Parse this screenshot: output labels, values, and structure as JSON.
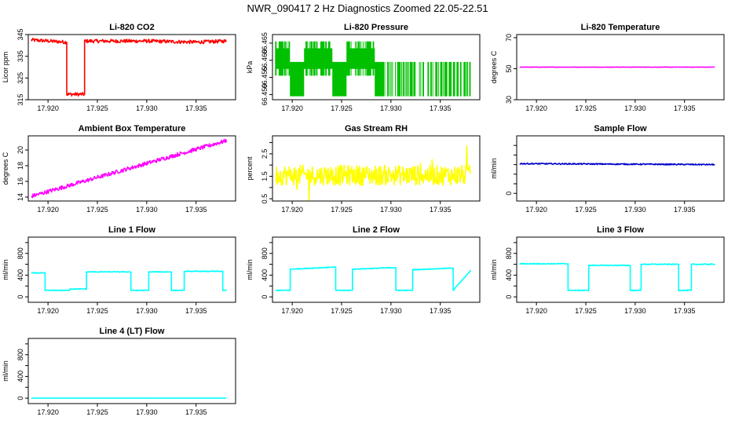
{
  "main_title": "NWR_090417  2 Hz Diagnostics Zoomed 22.05-22.51",
  "chart_data": [
    {
      "type": "line",
      "title": "Li-820 CO2",
      "ylabel": "Licor ppm",
      "xlim": [
        17.918,
        17.939
      ],
      "x_ticks": [
        17.92,
        17.925,
        17.93,
        17.935
      ],
      "x_tick_labels": [
        "17.920",
        "17.925",
        "17.930",
        "17.935"
      ],
      "ylim": [
        315,
        345
      ],
      "y_ticks": [
        315,
        325,
        335,
        345
      ],
      "y_tick_labels": [
        "315",
        "325",
        "335",
        "345"
      ],
      "color": "#ff0000",
      "series": [
        {
          "name": "CO2",
          "x": [
            17.9183,
            17.9219,
            17.9219,
            17.9237,
            17.9237,
            17.93,
            17.935,
            17.9381
          ],
          "y": [
            342.5,
            341.5,
            317.5,
            317.5,
            342,
            342,
            341.5,
            342
          ]
        }
      ],
      "noise": 0.8
    },
    {
      "type": "line",
      "title": "Li-820 Pressure",
      "ylabel": "kPa",
      "xlim": [
        17.918,
        17.939
      ],
      "x_ticks": [
        17.92,
        17.925,
        17.93,
        17.935
      ],
      "x_tick_labels": [
        "17.920",
        "17.925",
        "17.930",
        "17.935"
      ],
      "ylim": [
        66.4485,
        66.4675
      ],
      "y_ticks": [
        66.45,
        66.455,
        66.46,
        66.465
      ],
      "y_tick_labels": [
        "66.450",
        "66.455",
        "66.460",
        "66.465"
      ],
      "color": "#00c000",
      "series": [
        {
          "name": "Pressure",
          "levels": [
            66.4655,
            66.4635,
            66.4615,
            66.4595,
            66.4575,
            66.4555,
            66.4535,
            66.4515,
            66.4495
          ],
          "segments": [
            [
              17.9183,
              17.9293,
              66.4575
            ],
            [
              17.9293,
              17.9381,
              66.4595
            ]
          ]
        }
      ]
    },
    {
      "type": "line",
      "title": "Li-820 Temperature",
      "ylabel": "degrees C",
      "xlim": [
        17.918,
        17.939
      ],
      "x_ticks": [
        17.92,
        17.925,
        17.93,
        17.935
      ],
      "x_tick_labels": [
        "17.920",
        "17.925",
        "17.930",
        "17.935"
      ],
      "ylim": [
        30,
        72
      ],
      "y_ticks": [
        30,
        50,
        70
      ],
      "y_tick_labels": [
        "30",
        "50",
        "70"
      ],
      "color": "#ff00ff",
      "series": [
        {
          "name": "Temperature",
          "x": [
            17.9183,
            17.9381
          ],
          "y": [
            51,
            51
          ]
        }
      ],
      "noise": 0.1
    },
    {
      "type": "line",
      "title": "Ambient Box Temperature",
      "ylabel": "degrees C",
      "xlim": [
        17.918,
        17.939
      ],
      "x_ticks": [
        17.92,
        17.925,
        17.93,
        17.935
      ],
      "x_tick_labels": [
        "17.920",
        "17.925",
        "17.930",
        "17.935"
      ],
      "ylim": [
        13.5,
        21.8
      ],
      "y_ticks": [
        14,
        16,
        18,
        20
      ],
      "y_tick_labels": [
        "14",
        "16",
        "18",
        "20"
      ],
      "color": "#ff00ff",
      "series": [
        {
          "name": "Box temp",
          "x": [
            17.9183,
            17.9381
          ],
          "y": [
            14.1,
            21.2
          ]
        }
      ],
      "noise": 0.25
    },
    {
      "type": "line",
      "title": "Gas Stream RH",
      "ylabel": "percent",
      "xlim": [
        17.918,
        17.939
      ],
      "x_ticks": [
        17.92,
        17.925,
        17.93,
        17.935
      ],
      "x_tick_labels": [
        "17.920",
        "17.925",
        "17.930",
        "17.935"
      ],
      "ylim": [
        0.4,
        3.3
      ],
      "y_ticks": [
        0.5,
        1.5,
        2.5
      ],
      "y_tick_labels": [
        "0.5",
        "1.5",
        "2.5"
      ],
      "extra_y_ticks": [
        1.0,
        2.0,
        3.0
      ],
      "color": "#ffff00",
      "series": [
        {
          "name": "RH",
          "x": [
            17.9183,
            17.9381
          ],
          "y": [
            1.55,
            1.55
          ]
        }
      ],
      "noise": 0.45
    },
    {
      "type": "line",
      "title": "Sample Flow",
      "ylabel": "ml/min",
      "xlim": [
        17.918,
        17.939
      ],
      "x_ticks": [
        17.92,
        17.925,
        17.93,
        17.935
      ],
      "x_tick_labels": [
        "17.920",
        "17.925",
        "17.930",
        "17.935"
      ],
      "ylim": [
        -80,
        600
      ],
      "y_ticks": [
        0,
        100,
        200,
        300,
        400,
        500
      ],
      "y_tick_labels": [
        "0",
        "",
        "",
        "",
        "",
        ""
      ],
      "color": "#0000cc",
      "series": [
        {
          "name": "Sample flow",
          "x": [
            17.9183,
            17.9381
          ],
          "y": [
            310,
            300
          ]
        }
      ],
      "noise": 6
    },
    {
      "type": "line",
      "title": "Line 1 Flow",
      "ylabel": "ml/min",
      "xlim": [
        17.918,
        17.939
      ],
      "x_ticks": [
        17.92,
        17.925,
        17.93,
        17.935
      ],
      "x_tick_labels": [
        "17.920",
        "17.925",
        "17.930",
        "17.935"
      ],
      "ylim": [
        -100,
        1100
      ],
      "y_ticks": [
        0,
        200,
        400,
        600,
        800,
        1000
      ],
      "y_tick_labels": [
        "0",
        "",
        "400",
        "",
        "800",
        ""
      ],
      "color": "#00ffff",
      "series": [
        {
          "name": "Line 1",
          "x": [
            17.9183,
            17.9197,
            17.9197,
            17.9222,
            17.9222,
            17.9239,
            17.9239,
            17.9284,
            17.9284,
            17.9302,
            17.9302,
            17.9325,
            17.9325,
            17.9338,
            17.9338,
            17.9377,
            17.9377,
            17.9381
          ],
          "y": [
            440,
            440,
            120,
            120,
            145,
            145,
            460,
            460,
            120,
            120,
            460,
            460,
            120,
            120,
            470,
            470,
            120,
            120
          ]
        }
      ],
      "noise": 7
    },
    {
      "type": "line",
      "title": "Line 2 Flow",
      "ylabel": "ml/min",
      "xlim": [
        17.918,
        17.939
      ],
      "x_ticks": [
        17.92,
        17.925,
        17.93,
        17.935
      ],
      "x_tick_labels": [
        "17.920",
        "17.925",
        "17.930",
        "17.935"
      ],
      "ylim": [
        -100,
        1100
      ],
      "y_ticks": [
        0,
        200,
        400,
        600,
        800,
        1000
      ],
      "y_tick_labels": [
        "0",
        "",
        "400",
        "",
        "800",
        ""
      ],
      "color": "#00ffff",
      "series": [
        {
          "name": "Line 2",
          "x": [
            17.9183,
            17.9198,
            17.9198,
            17.9244,
            17.9244,
            17.9261,
            17.9261,
            17.9305,
            17.9305,
            17.9322,
            17.9322,
            17.9363,
            17.9363,
            17.9381
          ],
          "y": [
            120,
            120,
            510,
            550,
            120,
            120,
            510,
            540,
            120,
            120,
            500,
            530,
            120,
            490
          ]
        }
      ],
      "noise": 7
    },
    {
      "type": "line",
      "title": "Line 3 Flow",
      "ylabel": "ml/min",
      "xlim": [
        17.918,
        17.939
      ],
      "x_ticks": [
        17.92,
        17.925,
        17.93,
        17.935
      ],
      "x_tick_labels": [
        "17.920",
        "17.925",
        "17.930",
        "17.935"
      ],
      "ylim": [
        -100,
        1100
      ],
      "y_ticks": [
        0,
        200,
        400,
        600,
        800,
        1000
      ],
      "y_tick_labels": [
        "0",
        "",
        "400",
        "",
        "800",
        ""
      ],
      "color": "#00ffff",
      "series": [
        {
          "name": "Line 3",
          "x": [
            17.9183,
            17.9232,
            17.9232,
            17.9253,
            17.9253,
            17.9295,
            17.9295,
            17.9306,
            17.9306,
            17.9344,
            17.9344,
            17.9357,
            17.9357,
            17.9381
          ],
          "y": [
            610,
            610,
            120,
            120,
            580,
            580,
            120,
            120,
            600,
            600,
            120,
            120,
            600,
            600
          ]
        }
      ],
      "noise": 8
    },
    {
      "type": "line",
      "title": "Line 4 (LT) Flow",
      "ylabel": "ml/min",
      "xlim": [
        17.918,
        17.939
      ],
      "x_ticks": [
        17.92,
        17.925,
        17.93,
        17.935
      ],
      "x_tick_labels": [
        "17.920",
        "17.925",
        "17.930",
        "17.935"
      ],
      "ylim": [
        -100,
        1100
      ],
      "y_ticks": [
        0,
        200,
        400,
        600,
        800,
        1000
      ],
      "y_tick_labels": [
        "0",
        "",
        "400",
        "",
        "800",
        ""
      ],
      "color": "#00ffff",
      "series": [
        {
          "name": "Line 4",
          "x": [
            17.9183,
            17.9381
          ],
          "y": [
            0,
            0
          ]
        }
      ],
      "noise": 1
    }
  ]
}
